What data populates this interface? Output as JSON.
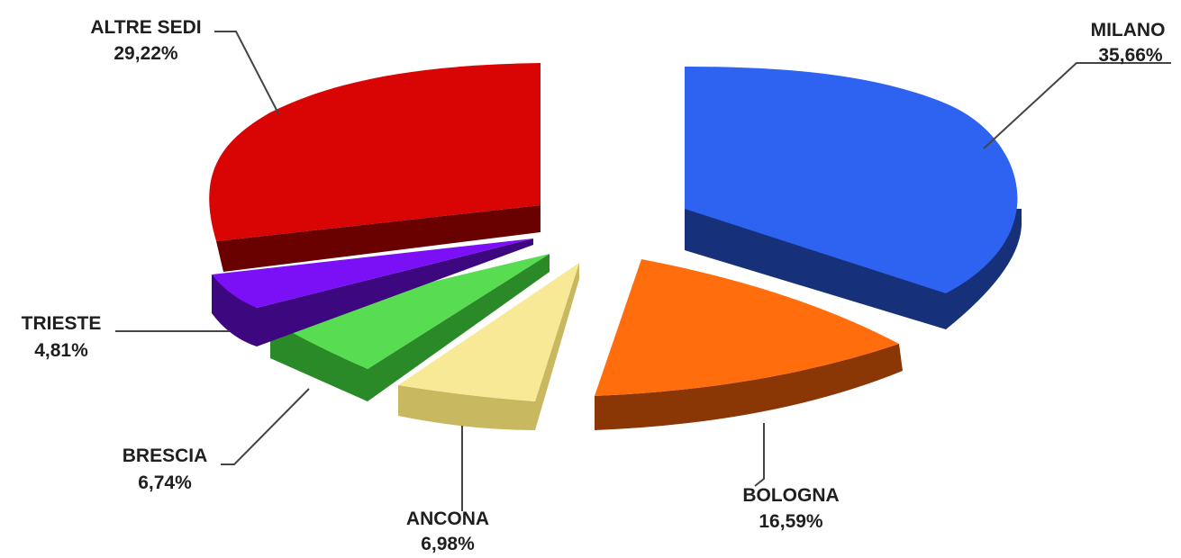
{
  "chart_data": {
    "type": "pie",
    "style": "3d-exploded",
    "slices": [
      {
        "label": "MILANO",
        "value_text": "35,66%",
        "value": 35.66,
        "color": "#2e62f0",
        "side_color": "#16307a"
      },
      {
        "label": "BOLOGNA",
        "value_text": "16,59%",
        "value": 16.59,
        "color": "#ff6d0d",
        "side_color": "#8a3605"
      },
      {
        "label": "ANCONA",
        "value_text": "6,98%",
        "value": 6.98,
        "color": "#f7e996",
        "side_color": "#c8b860"
      },
      {
        "label": "BRESCIA",
        "value_text": "6,74%",
        "value": 6.74,
        "color": "#57dc52",
        "side_color": "#2b8a28"
      },
      {
        "label": "TRIESTE",
        "value_text": "4,81%",
        "value": 4.81,
        "color": "#7b10f6",
        "side_color": "#3d0780"
      },
      {
        "label": "ALTRE SEDI",
        "value_text": "29,22%",
        "value": 29.22,
        "color": "#d90404",
        "side_color": "#6a0101"
      }
    ]
  }
}
